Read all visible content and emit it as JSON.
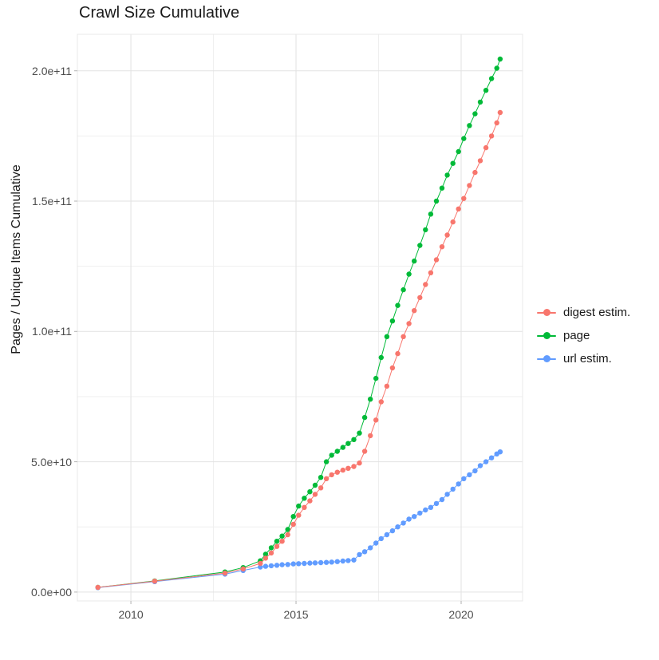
{
  "chart_data": {
    "type": "line",
    "marker": "point",
    "title": "Crawl Size Cumulative",
    "ylabel": "Pages / Unique Items Cumulative",
    "xlabel": "",
    "grid": true,
    "legend_position": "right",
    "x_range": [
      2008.38,
      2021.86
    ],
    "y_range_billions": [
      -3.4,
      214
    ],
    "x_ticks": {
      "values": [
        2010,
        2015,
        2020
      ],
      "labels": [
        "2010",
        "2015",
        "2020"
      ]
    },
    "y_ticks": {
      "values_billions": [
        0,
        50,
        100,
        150,
        200
      ],
      "labels": [
        "0.0e+00",
        "5.0e+10",
        "1.0e+11",
        "1.5e+11",
        "2.0e+11"
      ]
    },
    "x_minor": [
      2012.5,
      2017.5
    ],
    "y_minor_billions": [
      25,
      75,
      125,
      175
    ],
    "unit_note": "y values stored in billions of pages/items (1e9)",
    "colors": {
      "grid_major": "#e2e2e2",
      "grid_minor": "#efefef",
      "panel_border": "#e8e8e8",
      "tick": "#b3b3b3",
      "axis_text": "#4d4d4d",
      "title_text": "#1a1a1a"
    },
    "draw_order": [
      "page",
      "url estim.",
      "digest estim."
    ],
    "series": [
      {
        "name": "digest estim.",
        "color": "#F8766D",
        "points": [
          [
            2009.0,
            1.8
          ],
          [
            2010.72,
            4.2
          ],
          [
            2012.85,
            7.3
          ],
          [
            2013.4,
            8.9
          ],
          [
            2013.92,
            11
          ],
          [
            2014.08,
            13
          ],
          [
            2014.25,
            15
          ],
          [
            2014.42,
            17.5
          ],
          [
            2014.58,
            19.5
          ],
          [
            2014.75,
            22
          ],
          [
            2014.92,
            26
          ],
          [
            2015.08,
            29.5
          ],
          [
            2015.25,
            32.5
          ],
          [
            2015.42,
            35
          ],
          [
            2015.58,
            37.5
          ],
          [
            2015.75,
            40
          ],
          [
            2015.92,
            43.5
          ],
          [
            2016.08,
            45
          ],
          [
            2016.25,
            46
          ],
          [
            2016.42,
            46.8
          ],
          [
            2016.58,
            47.5
          ],
          [
            2016.75,
            48.2
          ],
          [
            2016.92,
            49.5
          ],
          [
            2017.08,
            54
          ],
          [
            2017.25,
            60
          ],
          [
            2017.42,
            66
          ],
          [
            2017.58,
            73
          ],
          [
            2017.75,
            79
          ],
          [
            2017.92,
            86
          ],
          [
            2018.08,
            91.5
          ],
          [
            2018.25,
            98
          ],
          [
            2018.42,
            103
          ],
          [
            2018.58,
            108
          ],
          [
            2018.75,
            113
          ],
          [
            2018.92,
            118
          ],
          [
            2019.08,
            122.5
          ],
          [
            2019.25,
            127.5
          ],
          [
            2019.42,
            132.5
          ],
          [
            2019.58,
            137
          ],
          [
            2019.75,
            142
          ],
          [
            2019.92,
            147
          ],
          [
            2020.08,
            151
          ],
          [
            2020.25,
            156
          ],
          [
            2020.42,
            161
          ],
          [
            2020.58,
            165.5
          ],
          [
            2020.75,
            170.5
          ],
          [
            2020.92,
            175
          ],
          [
            2021.08,
            180
          ],
          [
            2021.18,
            184
          ]
        ]
      },
      {
        "name": "page",
        "color": "#00BA38",
        "points": [
          [
            2009.0,
            1.8
          ],
          [
            2010.72,
            4.3
          ],
          [
            2012.85,
            7.7
          ],
          [
            2013.4,
            9.4
          ],
          [
            2013.92,
            12
          ],
          [
            2014.08,
            14.5
          ],
          [
            2014.25,
            17
          ],
          [
            2014.42,
            19.5
          ],
          [
            2014.58,
            21.5
          ],
          [
            2014.75,
            24
          ],
          [
            2014.92,
            29
          ],
          [
            2015.08,
            33
          ],
          [
            2015.25,
            36
          ],
          [
            2015.42,
            38.5
          ],
          [
            2015.58,
            41
          ],
          [
            2015.75,
            44
          ],
          [
            2015.92,
            50
          ],
          [
            2016.08,
            52.5
          ],
          [
            2016.25,
            54
          ],
          [
            2016.42,
            55.5
          ],
          [
            2016.58,
            57
          ],
          [
            2016.75,
            58.5
          ],
          [
            2016.92,
            61
          ],
          [
            2017.08,
            67
          ],
          [
            2017.25,
            74
          ],
          [
            2017.42,
            82
          ],
          [
            2017.58,
            90
          ],
          [
            2017.75,
            98
          ],
          [
            2017.92,
            104
          ],
          [
            2018.08,
            110
          ],
          [
            2018.25,
            116
          ],
          [
            2018.42,
            122
          ],
          [
            2018.58,
            127
          ],
          [
            2018.75,
            133
          ],
          [
            2018.92,
            139
          ],
          [
            2019.08,
            145
          ],
          [
            2019.25,
            150
          ],
          [
            2019.42,
            155
          ],
          [
            2019.58,
            160
          ],
          [
            2019.75,
            164.5
          ],
          [
            2019.92,
            169
          ],
          [
            2020.08,
            174
          ],
          [
            2020.25,
            179
          ],
          [
            2020.42,
            183.5
          ],
          [
            2020.58,
            188
          ],
          [
            2020.75,
            192.5
          ],
          [
            2020.92,
            197
          ],
          [
            2021.08,
            201
          ],
          [
            2021.18,
            204.5
          ]
        ]
      },
      {
        "name": "url estim.",
        "color": "#619CFF",
        "points": [
          [
            2009.0,
            1.7
          ],
          [
            2010.72,
            4.0
          ],
          [
            2012.85,
            6.9
          ],
          [
            2013.4,
            8.3
          ],
          [
            2013.92,
            9.6
          ],
          [
            2014.08,
            9.9
          ],
          [
            2014.25,
            10.1
          ],
          [
            2014.42,
            10.3
          ],
          [
            2014.58,
            10.5
          ],
          [
            2014.75,
            10.6
          ],
          [
            2014.92,
            10.8
          ],
          [
            2015.08,
            10.9
          ],
          [
            2015.25,
            11.0
          ],
          [
            2015.42,
            11.1
          ],
          [
            2015.58,
            11.2
          ],
          [
            2015.75,
            11.3
          ],
          [
            2015.92,
            11.4
          ],
          [
            2016.08,
            11.5
          ],
          [
            2016.25,
            11.7
          ],
          [
            2016.42,
            11.9
          ],
          [
            2016.58,
            12.1
          ],
          [
            2016.75,
            12.3
          ],
          [
            2016.92,
            14.4
          ],
          [
            2017.08,
            15.5
          ],
          [
            2017.25,
            17
          ],
          [
            2017.42,
            18.8
          ],
          [
            2017.58,
            20.5
          ],
          [
            2017.75,
            22
          ],
          [
            2017.92,
            23.5
          ],
          [
            2018.08,
            25
          ],
          [
            2018.25,
            26.5
          ],
          [
            2018.42,
            28
          ],
          [
            2018.58,
            29
          ],
          [
            2018.75,
            30.3
          ],
          [
            2018.92,
            31.5
          ],
          [
            2019.08,
            32.5
          ],
          [
            2019.25,
            34
          ],
          [
            2019.42,
            35.5
          ],
          [
            2019.58,
            37.5
          ],
          [
            2019.75,
            39.5
          ],
          [
            2019.92,
            41.5
          ],
          [
            2020.08,
            43.5
          ],
          [
            2020.25,
            45
          ],
          [
            2020.42,
            46.5
          ],
          [
            2020.58,
            48.5
          ],
          [
            2020.75,
            50
          ],
          [
            2020.92,
            51.5
          ],
          [
            2021.08,
            53
          ],
          [
            2021.18,
            53.8
          ]
        ]
      }
    ]
  }
}
